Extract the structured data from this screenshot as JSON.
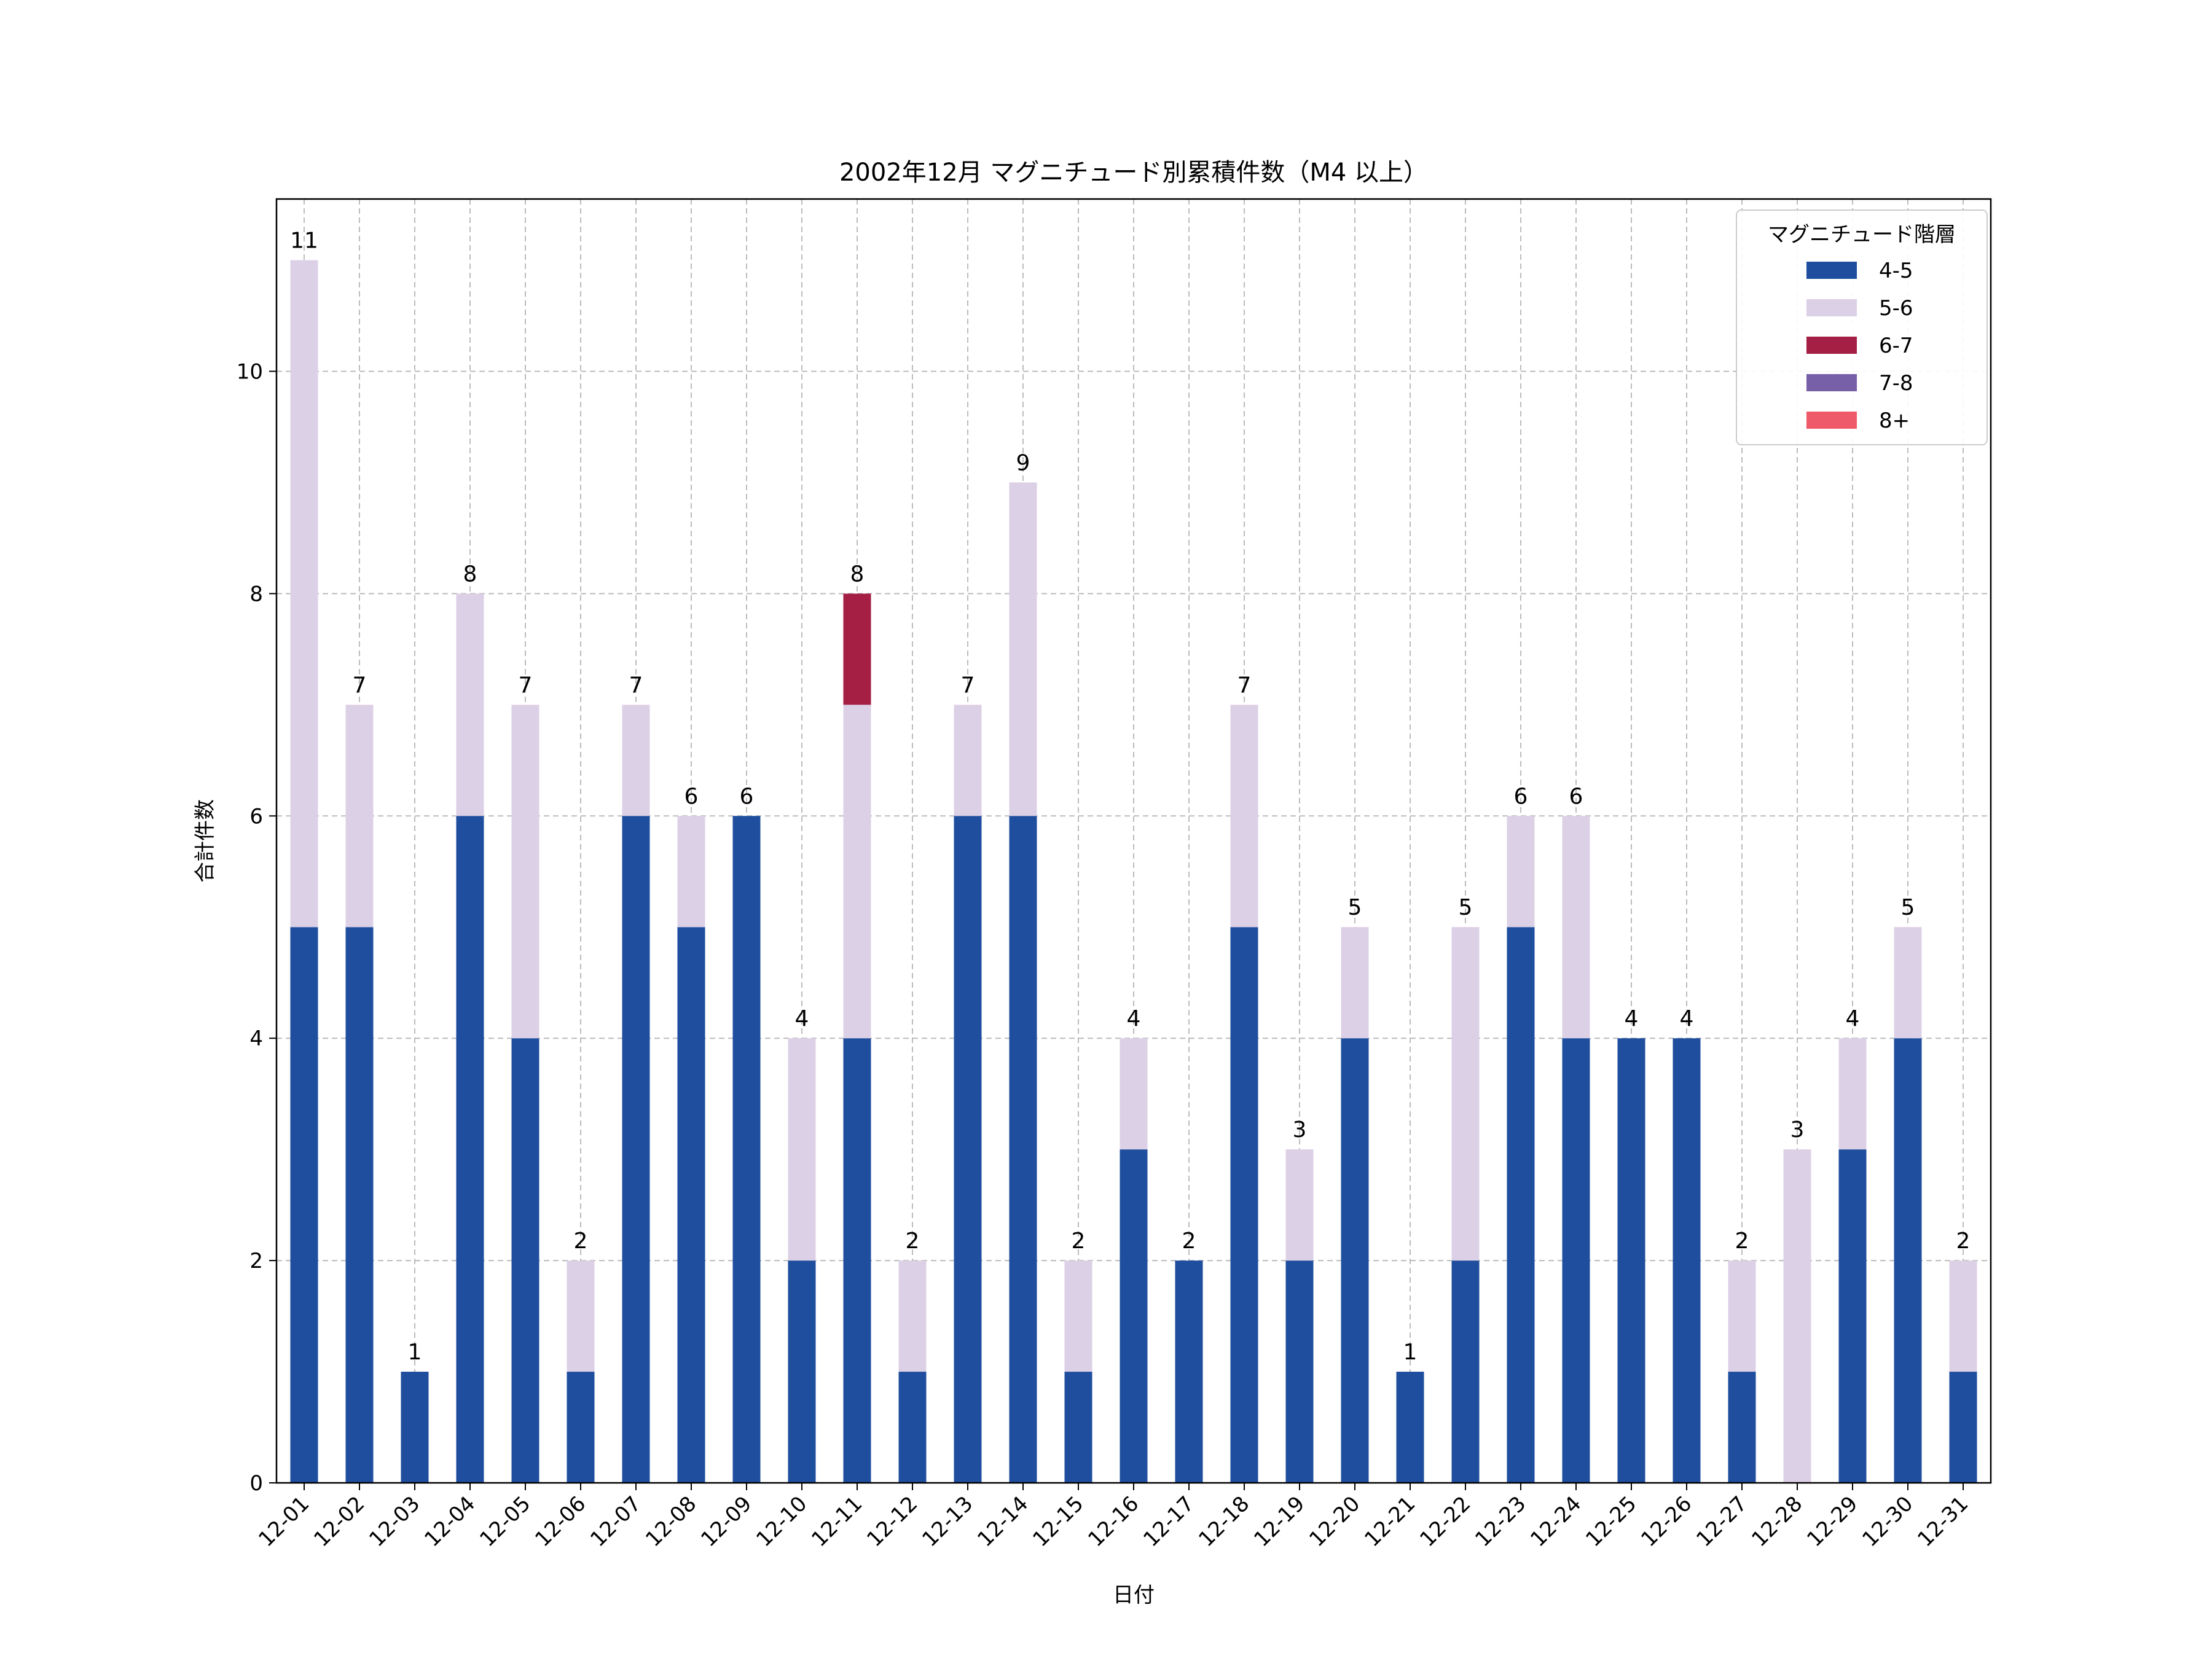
{
  "chart_data": {
    "type": "bar",
    "stacked": true,
    "title": "2002年12月 マグニチュード別累積件数（M4 以上）",
    "xlabel": "日付",
    "ylabel": "合計件数",
    "ylim": [
      0,
      11.55
    ],
    "yticks": [
      0,
      2,
      4,
      6,
      8,
      10
    ],
    "grid": true,
    "legend_title": "マグニチュード階層",
    "legend_position": "top-right",
    "categories": [
      "12-01",
      "12-02",
      "12-03",
      "12-04",
      "12-05",
      "12-06",
      "12-07",
      "12-08",
      "12-09",
      "12-10",
      "12-11",
      "12-12",
      "12-13",
      "12-14",
      "12-15",
      "12-16",
      "12-17",
      "12-18",
      "12-19",
      "12-20",
      "12-21",
      "12-22",
      "12-23",
      "12-24",
      "12-25",
      "12-26",
      "12-27",
      "12-28",
      "12-29",
      "12-30",
      "12-31"
    ],
    "series": [
      {
        "name": "4-5",
        "color": "#1f4e9e",
        "values": [
          5,
          5,
          1,
          6,
          4,
          1,
          6,
          5,
          6,
          2,
          4,
          1,
          6,
          6,
          1,
          3,
          2,
          5,
          2,
          4,
          1,
          2,
          5,
          4,
          4,
          4,
          1,
          0,
          3,
          4,
          1
        ]
      },
      {
        "name": "5-6",
        "color": "#dcd0e6",
        "values": [
          6,
          2,
          0,
          2,
          3,
          1,
          1,
          1,
          0,
          2,
          3,
          1,
          1,
          3,
          1,
          1,
          0,
          2,
          1,
          1,
          0,
          3,
          1,
          2,
          0,
          0,
          1,
          3,
          1,
          1,
          1
        ]
      },
      {
        "name": "6-7",
        "color": "#a51f45",
        "values": [
          0,
          0,
          0,
          0,
          0,
          0,
          0,
          0,
          0,
          0,
          1,
          0,
          0,
          0,
          0,
          0,
          0,
          0,
          0,
          0,
          0,
          0,
          0,
          0,
          0,
          0,
          0,
          0,
          0,
          0,
          0
        ]
      },
      {
        "name": "7-8",
        "color": "#7760a8",
        "values": [
          0,
          0,
          0,
          0,
          0,
          0,
          0,
          0,
          0,
          0,
          0,
          0,
          0,
          0,
          0,
          0,
          0,
          0,
          0,
          0,
          0,
          0,
          0,
          0,
          0,
          0,
          0,
          0,
          0,
          0,
          0
        ]
      },
      {
        "name": "8+",
        "color": "#ee5a6a",
        "values": [
          0,
          0,
          0,
          0,
          0,
          0,
          0,
          0,
          0,
          0,
          0,
          0,
          0,
          0,
          0,
          0,
          0,
          0,
          0,
          0,
          0,
          0,
          0,
          0,
          0,
          0,
          0,
          0,
          0,
          0,
          0
        ]
      }
    ],
    "totals": [
      11,
      7,
      1,
      8,
      7,
      2,
      7,
      6,
      6,
      4,
      8,
      2,
      7,
      9,
      2,
      4,
      2,
      7,
      3,
      5,
      1,
      5,
      6,
      6,
      4,
      4,
      2,
      3,
      4,
      5,
      2
    ]
  }
}
